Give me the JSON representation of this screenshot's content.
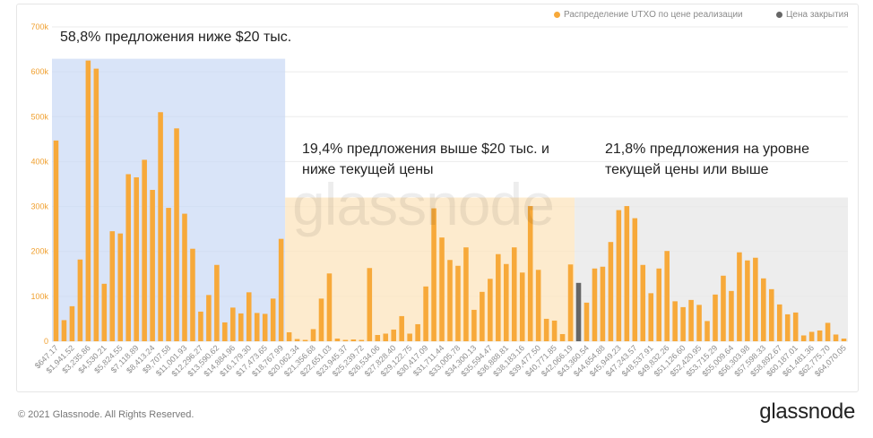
{
  "colors": {
    "bar": "#F7A93A",
    "close_bar": "#666666",
    "region1": "#C9D8F5",
    "region2": "#FDE6C2",
    "region3": "#E8E8E8",
    "grid": "#EBEBEB",
    "ytick": "#F0A030"
  },
  "legend": {
    "utxo_label": "Распределение UTXO по цене реализации",
    "close_label": "Цена закрытия",
    "utxo_icon": "orange-dot-icon",
    "close_icon": "gray-dot-icon"
  },
  "annotations": {
    "a1": "58,8% предложения ниже $20 тыс.",
    "a2": "19,4% предложения выше $20 тыс. и ниже текущей цены",
    "a3": "21,8% предложения на уровне текущей цены или выше"
  },
  "watermark": "glassnode",
  "footer": {
    "copyright": "© 2021 Glassnode. All Rights Reserved.",
    "logo": "glassnode"
  },
  "chart_data": {
    "type": "bar",
    "title": "",
    "xlabel": "",
    "ylabel": "",
    "ylim": [
      0,
      700000
    ],
    "yticks": [
      "0",
      "100k",
      "200k",
      "300k",
      "400k",
      "500k",
      "600k",
      "700k"
    ],
    "grid": true,
    "legend_position": "top-right",
    "xtick_labels": [
      "$647.17",
      "$1,941.52",
      "$3,235.86",
      "$4,530.21",
      "$5,824.55",
      "$7,118.89",
      "$8,413.24",
      "$9,707.58",
      "$11,001.93",
      "$12,296.27",
      "$13,590.62",
      "$14,884.96",
      "$16,179.30",
      "$17,473.65",
      "$18,767.99",
      "$20,062.34",
      "$21,356.68",
      "$22,651.03",
      "$23,945.37",
      "$25,239.72",
      "$26,534.06",
      "$27,828.40",
      "$29,122.75",
      "$30,417.09",
      "$31,711.44",
      "$33,005.78",
      "$34,300.13",
      "$35,594.47",
      "$36,888.81",
      "$38,183.16",
      "$39,477.50",
      "$40,771.85",
      "$42,066.19",
      "$43,360.54",
      "$44,654.88",
      "$45,949.23",
      "$47,243.57",
      "$48,537.91",
      "$49,832.26",
      "$51,126.60",
      "$52,420.95",
      "$53,715.29",
      "$55,009.64",
      "$56,303.98",
      "$57,598.33",
      "$58,892.67",
      "$60,187.01",
      "$61,481.36",
      "$62,775.70",
      "$64,070.05"
    ],
    "values": [
      447000,
      47000,
      78000,
      182000,
      625000,
      607000,
      128000,
      245000,
      240000,
      372000,
      365000,
      404000,
      337000,
      510000,
      297000,
      474000,
      284000,
      206000,
      66000,
      103000,
      170000,
      42000,
      75000,
      62000,
      109000,
      63000,
      61000,
      95000,
      228000,
      20000,
      5000,
      3000,
      27000,
      95000,
      151000,
      6000,
      3000,
      4000,
      3000,
      163000,
      14000,
      17000,
      26000,
      56000,
      17000,
      38000,
      122000,
      296000,
      231000,
      181000,
      168000,
      209000,
      70000,
      110000,
      139000,
      194000,
      172000,
      209000,
      153000,
      301000,
      159000,
      50000,
      46000,
      16000,
      171000,
      130000,
      86000,
      162000,
      166000,
      221000,
      292000,
      301000,
      274000,
      170000,
      107000,
      162000,
      201000,
      89000,
      76000,
      92000,
      81000,
      45000,
      104000,
      146000,
      112000,
      198000,
      180000,
      186000,
      140000,
      116000,
      82000,
      60000,
      64000,
      13000,
      21000,
      24000,
      41000,
      15000,
      6000
    ],
    "close_price_bar_index": 65,
    "regions": [
      {
        "label": "58,8% предложения ниже $20 тыс.",
        "from_index": 0,
        "to_index": 28
      },
      {
        "label": "19,4% предложения выше $20 тыс. и ниже текущей цены",
        "from_index": 29,
        "to_index": 64
      },
      {
        "label": "21,8% предложения на уровне текущей цены или выше",
        "from_index": 65,
        "to_index": 98
      }
    ],
    "series": [
      {
        "name": "Распределение UTXO по цене реализации"
      },
      {
        "name": "Цена закрытия"
      }
    ]
  }
}
